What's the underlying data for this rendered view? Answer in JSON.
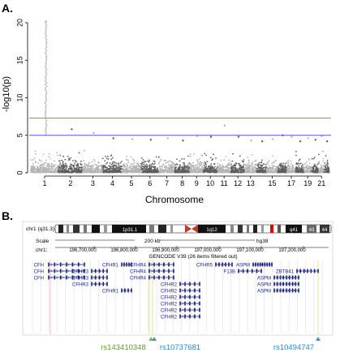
{
  "panels": {
    "a": "A.",
    "b": "B."
  },
  "chart_data": [
    {
      "type": "scatter",
      "subtype": "manhattan",
      "xlabel": "Chromosome",
      "ylabel": "-log10(p)",
      "ylim": [
        0,
        20
      ],
      "yticks": [
        0,
        5,
        10,
        15,
        20
      ],
      "x_tick_labels": [
        "1",
        "2",
        "3",
        "4",
        "5",
        "6",
        "7",
        "8",
        "9",
        "10",
        "11",
        "12",
        "13",
        "15",
        "17",
        "19",
        "21"
      ],
      "chromosomes": [
        {
          "chr": "1",
          "max": 20.2
        },
        {
          "chr": "2",
          "max": 5.8
        },
        {
          "chr": "3",
          "max": 5.3
        },
        {
          "chr": "4",
          "max": 4.6
        },
        {
          "chr": "5",
          "max": 4.5
        },
        {
          "chr": "6",
          "max": 4.4
        },
        {
          "chr": "7",
          "max": 4.6
        },
        {
          "chr": "8",
          "max": 4.3
        },
        {
          "chr": "9",
          "max": 4.9
        },
        {
          "chr": "10",
          "max": 4.8
        },
        {
          "chr": "11",
          "max": 6.3
        },
        {
          "chr": "12",
          "max": 4.8
        },
        {
          "chr": "13",
          "max": 4.3
        },
        {
          "chr": "14",
          "max": 4.2
        },
        {
          "chr": "15",
          "max": 4.5
        },
        {
          "chr": "16",
          "max": 5.0
        },
        {
          "chr": "17",
          "max": 4.8
        },
        {
          "chr": "18",
          "max": 4.2
        },
        {
          "chr": "19",
          "max": 4.6
        },
        {
          "chr": "20",
          "max": 4.4
        },
        {
          "chr": "21",
          "max": 4.9
        },
        {
          "chr": "22",
          "max": 4.2
        }
      ],
      "thresholds": [
        {
          "name": "genome-wide",
          "value": 7.3,
          "color": "#e8504a"
        },
        {
          "name": "suggestive",
          "value": 5.0,
          "color": "#4a5ce8"
        }
      ],
      "colors": {
        "light": "#b4b4b4",
        "dark": "#5e5e5e"
      }
    }
  ],
  "browser": {
    "cytoband": {
      "chr_label": "chr1 (q31.3)",
      "bands": [
        "1p31.1",
        "1q12",
        "q41",
        "43",
        "44"
      ]
    },
    "scale_label": "Scale",
    "scale_value": "200 kb",
    "assembly": "hg38",
    "chr_coord_label": "chr1:",
    "coords": [
      "196,700,000",
      "196,800,000",
      "196,900,000",
      "197,000,000",
      "197,100,000",
      "197,200,000"
    ],
    "track_label": "GENCODE V39 (26 items filtered out)",
    "genes_left": [
      "CFH",
      "CFH",
      "CFH"
    ],
    "genes_cfhr3": [
      "CFHR1",
      "CFHR3",
      "CFHR3",
      "CFHR3",
      "CFHR1"
    ],
    "genes_cfhr4": [
      "CFHR4",
      "CFHR4",
      "CFHR4"
    ],
    "genes_cfhr2": [
      "CFHR2",
      "CFHR2",
      "CFHR2",
      "CFHR2",
      "CFHR2",
      "CFHR2"
    ],
    "genes_cfhr5": [
      "CFHR5"
    ],
    "gene_f13b": "F13B",
    "genes_aspm": [
      "ASPM",
      "ASPM",
      "ASPM",
      "ASPM"
    ],
    "gene_zbtb41": "ZBTB41",
    "snps": [
      {
        "id": "rs143410348",
        "color": "#5aa02c"
      },
      {
        "id": "rs10737681",
        "color": "#2a8ac8"
      },
      {
        "id": "rs10494747",
        "color": "#2a8ac8"
      }
    ]
  }
}
